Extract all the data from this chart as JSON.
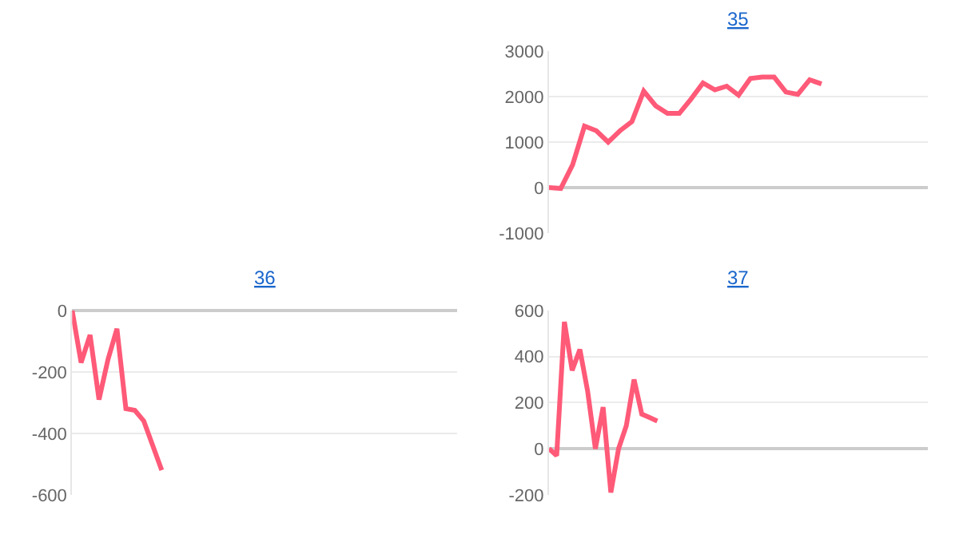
{
  "chart_data": [
    {
      "type": "line",
      "title": "35",
      "categories": [
        null,
        null,
        null,
        null,
        null,
        null,
        null,
        null,
        null,
        null,
        null,
        null,
        null,
        null,
        null,
        null,
        null,
        null,
        null,
        null,
        null,
        null,
        null,
        null,
        null,
        null,
        null,
        null,
        null,
        null,
        null,
        null,
        null
      ],
      "series": [
        {
          "color": "#ff5a78",
          "values": [
            0,
            -20,
            500,
            1350,
            1250,
            1000,
            1250,
            1450,
            2120,
            1800,
            1630,
            1630,
            1950,
            2300,
            2150,
            2230,
            2030,
            2400,
            2430,
            2430,
            2100,
            2050,
            2370,
            2280,
            null,
            null,
            null,
            null,
            null,
            null,
            null,
            null,
            null
          ]
        }
      ],
      "ylim": [
        -1000,
        3000
      ],
      "yticks": [
        -1000,
        0,
        1000,
        2000,
        3000
      ],
      "grid": "y",
      "tick_labels": "y"
    },
    {
      "type": "line",
      "title": "36",
      "categories": [
        null,
        null,
        null,
        null,
        null,
        null,
        null,
        null,
        null,
        null,
        null,
        null,
        null,
        null,
        null,
        null,
        null,
        null,
        null,
        null,
        null,
        null,
        null,
        null,
        null,
        null,
        null,
        null,
        null,
        null,
        null,
        null,
        null,
        null,
        null,
        null,
        null,
        null,
        null,
        null,
        null,
        null,
        null,
        null
      ],
      "series": [
        {
          "color": "#ff5a78",
          "values": [
            0,
            -170,
            -80,
            -290,
            -160,
            -60,
            -320,
            -325,
            -360,
            -440,
            -520,
            null,
            null,
            null,
            null,
            null,
            null,
            null,
            null,
            null,
            null,
            null,
            null,
            null,
            null,
            null,
            null,
            null,
            null,
            null,
            null,
            null,
            null,
            null,
            null,
            null,
            null,
            null,
            null,
            null,
            null,
            null,
            null,
            null
          ]
        }
      ],
      "ylim": [
        -600,
        0
      ],
      "yticks": [
        -600,
        -400,
        -200,
        0
      ],
      "grid": "y",
      "tick_labels": "y"
    },
    {
      "type": "line",
      "title": "37",
      "categories": [
        null,
        null,
        null,
        null,
        null,
        null,
        null,
        null,
        null,
        null,
        null,
        null,
        null,
        null,
        null,
        null,
        null,
        null,
        null,
        null,
        null,
        null,
        null,
        null,
        null,
        null,
        null,
        null,
        null,
        null,
        null,
        null,
        null,
        null,
        null,
        null,
        null,
        null,
        null,
        null,
        null,
        null,
        null,
        null,
        null,
        null,
        null,
        null,
        null,
        null
      ],
      "series": [
        {
          "color": "#ff5a78",
          "values": [
            0,
            -30,
            550,
            340,
            430,
            250,
            0,
            180,
            -190,
            0,
            100,
            300,
            150,
            135,
            120,
            null,
            null,
            null,
            null,
            null,
            null,
            null,
            null,
            null,
            null,
            null,
            null,
            null,
            null,
            null,
            null,
            null,
            null,
            null,
            null,
            null,
            null,
            null,
            null,
            null,
            null,
            null,
            null,
            null,
            null,
            null,
            null,
            null,
            null,
            null
          ]
        }
      ],
      "ylim": [
        -200,
        600
      ],
      "yticks": [
        -200,
        0,
        200,
        400,
        600
      ],
      "grid": "y",
      "tick_labels": "y"
    }
  ]
}
